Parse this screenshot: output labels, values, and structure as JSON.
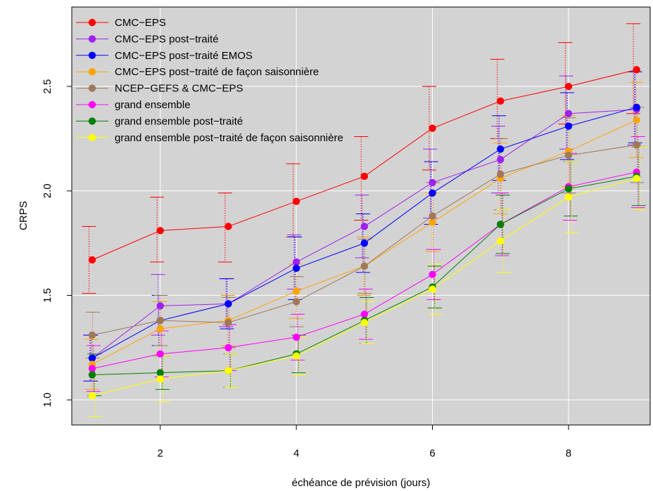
{
  "chart_data": {
    "type": "line",
    "xlabel": "échéance de prévision (jours)",
    "ylabel": "CRPS",
    "xlim": [
      0.7,
      9.2
    ],
    "ylim": [
      0.88,
      2.88
    ],
    "x_ticks": [
      2,
      4,
      6,
      8
    ],
    "y_ticks": [
      1.0,
      1.5,
      2.0,
      2.5
    ],
    "y_tick_labels": [
      "1.0",
      "1.5",
      "2.0",
      "2.5"
    ],
    "grid": true,
    "background": "#d3d3d3",
    "legend_position": "top-left",
    "x": [
      1,
      2,
      3,
      4,
      5,
      6,
      7,
      8,
      9
    ],
    "series": [
      {
        "name": "CMC−EPS",
        "color": "#ff0000",
        "values": [
          1.67,
          1.81,
          1.83,
          1.95,
          2.07,
          2.3,
          2.43,
          2.5,
          2.58
        ],
        "lower": [
          1.51,
          1.66,
          1.66,
          1.78,
          1.86,
          2.1,
          2.25,
          2.32,
          2.37
        ],
        "upper": [
          1.83,
          1.97,
          1.99,
          2.13,
          2.26,
          2.5,
          2.63,
          2.71,
          2.8
        ]
      },
      {
        "name": "CMC−EPS post−traité",
        "color": "#a020f0",
        "values": [
          1.2,
          1.45,
          1.46,
          1.66,
          1.83,
          2.04,
          2.15,
          2.37,
          2.39
        ],
        "lower": [
          1.09,
          1.31,
          1.35,
          1.53,
          1.68,
          1.87,
          1.99,
          2.2,
          2.22
        ],
        "upper": [
          1.31,
          1.6,
          1.58,
          1.79,
          1.98,
          2.2,
          2.31,
          2.55,
          2.57
        ]
      },
      {
        "name": "CMC−EPS post−traité EMOS",
        "color": "#0000ff",
        "values": [
          1.2,
          1.38,
          1.46,
          1.63,
          1.75,
          1.99,
          2.2,
          2.31,
          2.4
        ],
        "lower": [
          1.09,
          1.26,
          1.34,
          1.48,
          1.61,
          1.84,
          2.05,
          2.15,
          2.23
        ],
        "upper": [
          1.31,
          1.5,
          1.58,
          1.78,
          1.89,
          2.14,
          2.36,
          2.47,
          2.57
        ]
      },
      {
        "name": "CMC−EPS post−traité de façon saisonnière",
        "color": "#ffa500",
        "values": [
          1.17,
          1.34,
          1.38,
          1.52,
          1.64,
          1.85,
          2.06,
          2.19,
          2.34
        ],
        "lower": [
          1.05,
          1.21,
          1.26,
          1.39,
          1.5,
          1.71,
          1.89,
          2.02,
          2.16
        ],
        "upper": [
          1.29,
          1.47,
          1.5,
          1.65,
          1.78,
          1.99,
          2.23,
          2.36,
          2.52
        ]
      },
      {
        "name": "NCEP−GEFS & CMC−EPS",
        "color": "#a0785a",
        "values": [
          1.31,
          1.38,
          1.37,
          1.47,
          1.64,
          1.88,
          2.08,
          2.17,
          2.22
        ],
        "lower": [
          1.2,
          1.26,
          1.25,
          1.35,
          1.51,
          1.72,
          1.91,
          1.99,
          2.04
        ],
        "upper": [
          1.42,
          1.5,
          1.49,
          1.59,
          1.77,
          2.04,
          2.25,
          2.35,
          2.4
        ]
      },
      {
        "name": "grand ensemble",
        "color": "#ff00ff",
        "values": [
          1.15,
          1.22,
          1.25,
          1.3,
          1.41,
          1.6,
          1.84,
          2.02,
          2.09
        ],
        "lower": [
          1.04,
          1.11,
          1.14,
          1.19,
          1.29,
          1.48,
          1.69,
          1.86,
          1.92
        ],
        "upper": [
          1.26,
          1.33,
          1.36,
          1.41,
          1.53,
          1.72,
          1.99,
          2.18,
          2.26
        ]
      },
      {
        "name": "grand ensemble post−traité",
        "color": "#008000",
        "values": [
          1.12,
          1.13,
          1.14,
          1.22,
          1.38,
          1.54,
          1.84,
          2.01,
          2.07
        ],
        "lower": [
          1.02,
          1.05,
          1.06,
          1.13,
          1.27,
          1.44,
          1.7,
          1.88,
          1.93
        ],
        "upper": [
          1.22,
          1.21,
          1.22,
          1.31,
          1.49,
          1.64,
          1.98,
          2.14,
          2.21
        ]
      },
      {
        "name": "grand ensemble post−traité de façon saisonnière",
        "color": "#ffff00",
        "values": [
          1.02,
          1.1,
          1.14,
          1.21,
          1.37,
          1.53,
          1.76,
          1.97,
          2.06
        ],
        "lower": [
          0.92,
          0.99,
          1.06,
          1.12,
          1.27,
          1.41,
          1.61,
          1.8,
          1.91
        ],
        "upper": [
          1.12,
          1.21,
          1.22,
          1.3,
          1.47,
          1.65,
          1.91,
          2.14,
          2.21
        ]
      }
    ]
  }
}
